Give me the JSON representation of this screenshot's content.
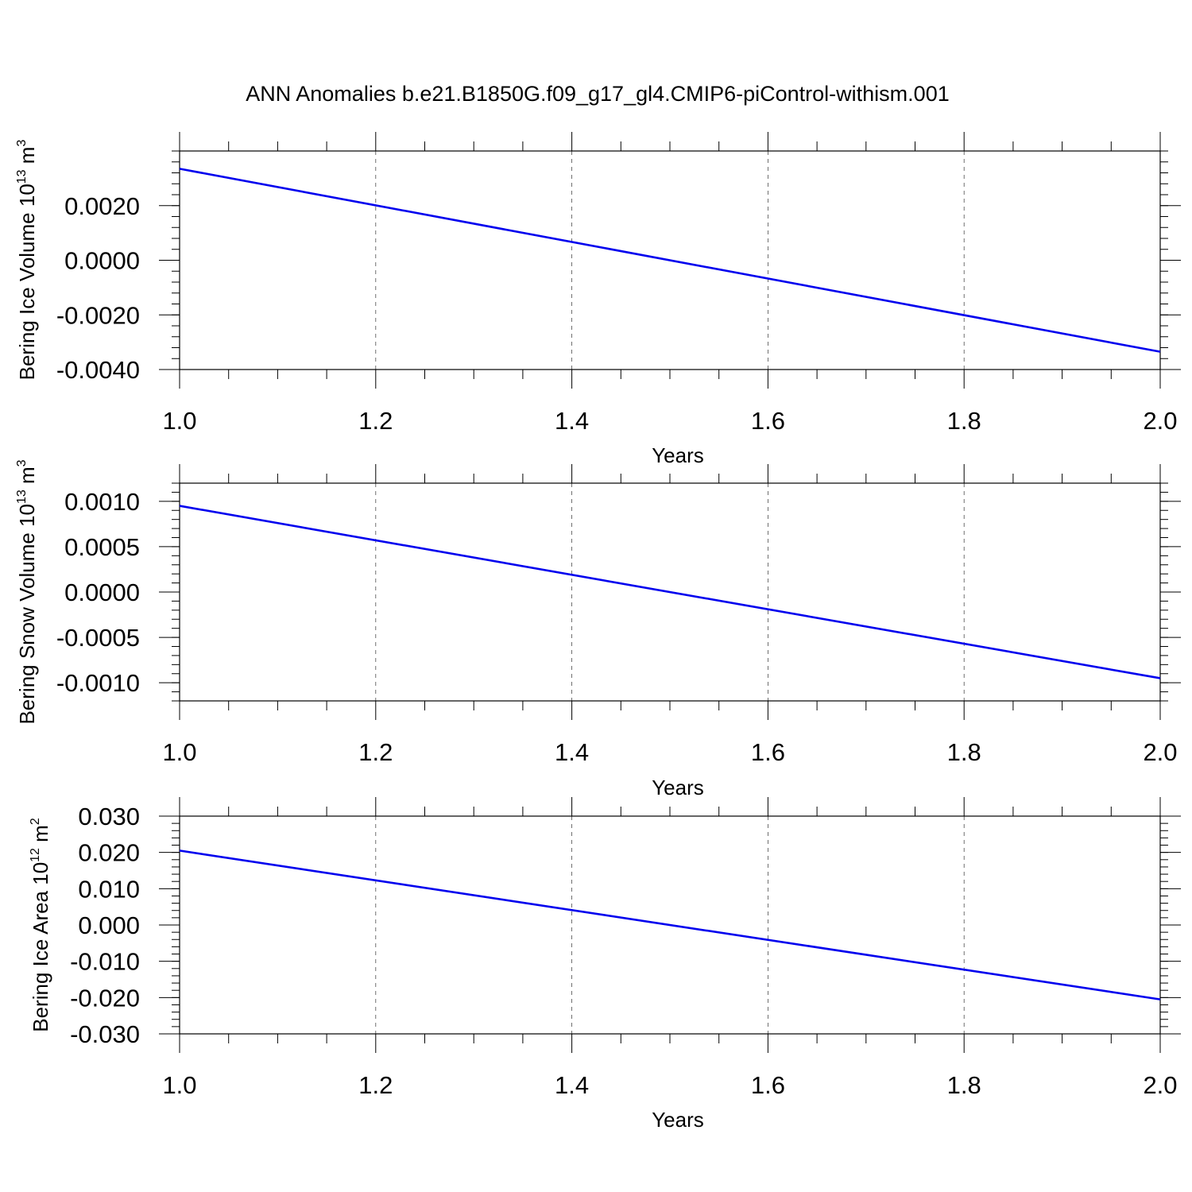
{
  "figure": {
    "title": "ANN Anomalies b.e21.B1850G.f09_g17_gl4.CMIP6-piControl-withism.001"
  },
  "colors": {
    "series_line": "#0000ee",
    "axes": "#000000",
    "grid": "#000000",
    "background": "#ffffff"
  },
  "chart_data": [
    {
      "type": "line",
      "xlabel": "Years",
      "ylabel": {
        "text": "Bering Ice Volume 10",
        "exponent": "13",
        "unit": " m",
        "unit_exponent": "3"
      },
      "xlim": [
        1.0,
        2.0
      ],
      "ylim": [
        -0.004,
        0.004
      ],
      "xticks": [
        "1.0",
        "1.2",
        "1.4",
        "1.6",
        "1.8",
        "2.0"
      ],
      "yticks": [
        "0.0020",
        "0.0000",
        "-0.0020",
        "-0.0040"
      ],
      "grid": "x-dashed",
      "series": [
        {
          "x": [
            1.0,
            2.0
          ],
          "y": [
            0.00335,
            -0.00335
          ]
        }
      ]
    },
    {
      "type": "line",
      "xlabel": "Years",
      "ylabel": {
        "text": "Bering Snow Volume 10",
        "exponent": "13",
        "unit": " m",
        "unit_exponent": "3"
      },
      "xlim": [
        1.0,
        2.0
      ],
      "ylim": [
        -0.0012,
        0.0012
      ],
      "xticks": [
        "1.0",
        "1.2",
        "1.4",
        "1.6",
        "1.8",
        "2.0"
      ],
      "yticks": [
        "0.0010",
        "0.0005",
        "0.0000",
        "-0.0005",
        "-0.0010"
      ],
      "grid": "x-dashed",
      "series": [
        {
          "x": [
            1.0,
            2.0
          ],
          "y": [
            0.00095,
            -0.00095
          ]
        }
      ]
    },
    {
      "type": "line",
      "xlabel": "Years",
      "ylabel": {
        "text": "Bering Ice Area 10",
        "exponent": "12",
        "unit": " m",
        "unit_exponent": "2"
      },
      "xlim": [
        1.0,
        2.0
      ],
      "ylim": [
        -0.03,
        0.03
      ],
      "xticks": [
        "1.0",
        "1.2",
        "1.4",
        "1.6",
        "1.8",
        "2.0"
      ],
      "yticks": [
        "0.030",
        "0.020",
        "0.010",
        "0.000",
        "-0.010",
        "-0.020",
        "-0.030"
      ],
      "grid": "x-dashed",
      "series": [
        {
          "x": [
            1.0,
            2.0
          ],
          "y": [
            0.0205,
            -0.0205
          ]
        }
      ]
    }
  ]
}
